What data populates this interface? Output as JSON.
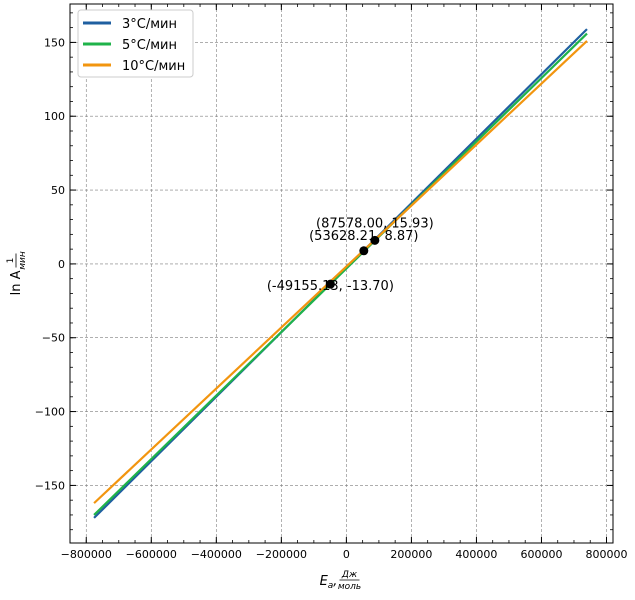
{
  "chart_data": {
    "type": "line",
    "title": "",
    "xlabel": {
      "main": "E",
      "sub": "a",
      "unit_num": "Дж",
      "unit_den": "моль"
    },
    "ylabel": {
      "main": "ln A",
      "unit_num": "1",
      "unit_den": "мин"
    },
    "xlim": [
      -850000,
      820000
    ],
    "ylim": [
      -189,
      176
    ],
    "grid": true,
    "legend_position": "top-left",
    "x_ticks": [
      -800000,
      -600000,
      -400000,
      -200000,
      0,
      200000,
      400000,
      600000,
      800000
    ],
    "x_tick_labels": [
      "−800000",
      "−600000",
      "−400000",
      "−200000",
      "0",
      "200000",
      "400000",
      "600000",
      "800000"
    ],
    "y_ticks": [
      -150,
      -100,
      -50,
      0,
      50,
      100,
      150
    ],
    "y_tick_labels": [
      "−150",
      "−100",
      "−50",
      "0",
      "50",
      "100",
      "150"
    ],
    "series": [
      {
        "name": "3°C/мин",
        "color": "#1f5fa0",
        "x": [
          -776000,
          740000
        ],
        "y": [
          -172,
          159
        ]
      },
      {
        "name": "5°C/мин",
        "color": "#1fb34a",
        "x": [
          -776000,
          740000
        ],
        "y": [
          -170,
          156
        ]
      },
      {
        "name": "10°C/мин",
        "color": "#f2950f",
        "x": [
          -776000,
          740000
        ],
        "y": [
          -162,
          151
        ]
      }
    ],
    "points": [
      {
        "x": -49155.13,
        "y": -13.7,
        "label": "(-49155.13, -13.70)"
      },
      {
        "x": 53628.21,
        "y": 8.87,
        "label": "(53628.21, 8.87)"
      },
      {
        "x": 87578.0,
        "y": 15.93,
        "label": "(87578.00, 15.93)"
      }
    ]
  }
}
